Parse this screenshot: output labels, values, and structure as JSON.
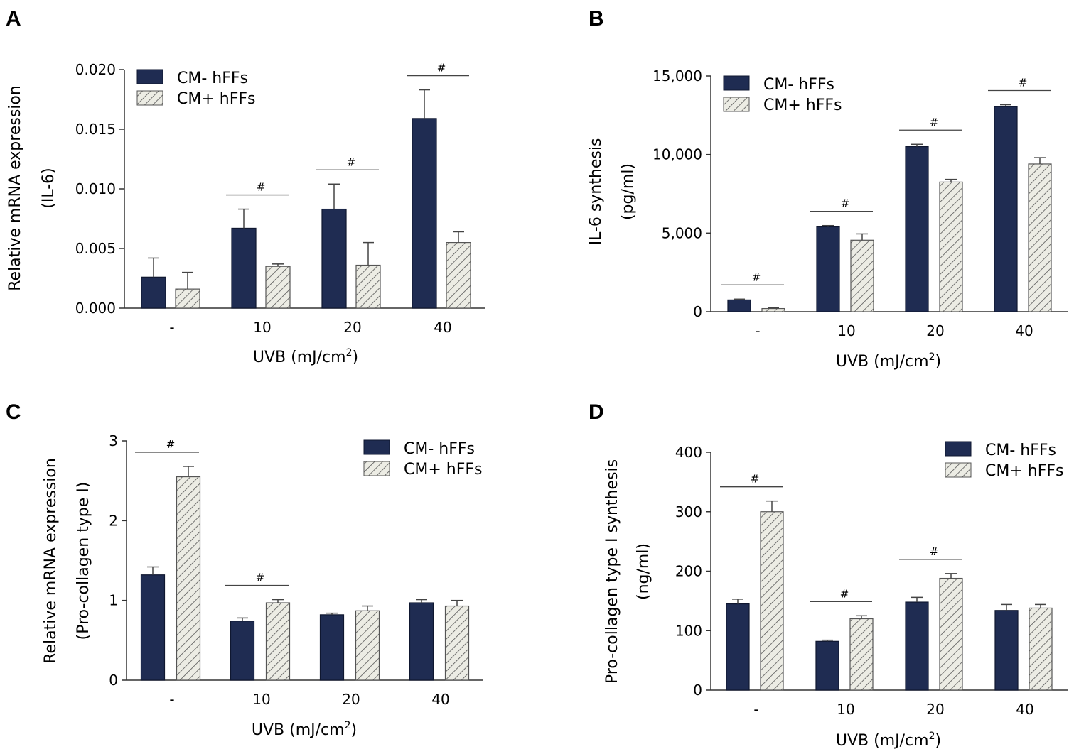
{
  "colors": {
    "dark_bar": "#1f2c52",
    "hatch_bar": "#e8e8df",
    "axis": "#333333"
  },
  "legend": {
    "dark": "CM- hFFs",
    "hatched": "CM+ hFFs"
  },
  "hash_mark": "#",
  "chart_data": [
    {
      "panel": "A",
      "type": "bar",
      "ylabel_line1": "Relative  mRNA expression",
      "ylabel_line2": "(IL-6)",
      "xlabel": "UVB (mJ/cm",
      "xlabel_sup": "2",
      "xlabel_tail": ")",
      "categories": [
        "-",
        "10",
        "20",
        "40"
      ],
      "ylim": [
        0,
        0.02
      ],
      "yticks": [
        0.0,
        0.005,
        0.01,
        0.015,
        0.02
      ],
      "ytick_labels": [
        "0.000",
        "0.005",
        "0.010",
        "0.015",
        "0.020"
      ],
      "legend_position": "top-left",
      "series": [
        {
          "name": "CM- hFFs",
          "values": [
            0.0026,
            0.0067,
            0.0083,
            0.0159
          ],
          "errors": [
            0.0016,
            0.0016,
            0.0021,
            0.0024
          ]
        },
        {
          "name": "CM+ hFFs",
          "values": [
            0.0016,
            0.0035,
            0.0036,
            0.0055
          ],
          "errors": [
            0.0014,
            0.0002,
            0.0019,
            0.0009
          ]
        }
      ],
      "significance": [
        1,
        2,
        3
      ]
    },
    {
      "panel": "B",
      "type": "bar",
      "ylabel_line1": "IL-6 synthesis",
      "ylabel_line2": "(pg/ml)",
      "xlabel": "UVB (mJ/cm",
      "xlabel_sup": "2",
      "xlabel_tail": ")",
      "categories": [
        "-",
        "10",
        "20",
        "40"
      ],
      "ylim": [
        0,
        15000
      ],
      "yticks": [
        0,
        5000,
        10000,
        15000
      ],
      "ytick_labels": [
        "0",
        "5,000",
        "10,000",
        "15,000"
      ],
      "legend_position": "top-left",
      "series": [
        {
          "name": "CM- hFFs",
          "values": [
            750,
            5400,
            10500,
            13050
          ],
          "errors": [
            50,
            80,
            150,
            120
          ]
        },
        {
          "name": "CM+ hFFs",
          "values": [
            200,
            4550,
            8250,
            9400
          ],
          "errors": [
            40,
            400,
            170,
            400
          ]
        }
      ],
      "significance": [
        0,
        1,
        2,
        3
      ]
    },
    {
      "panel": "C",
      "type": "bar",
      "ylabel_line1": "Relative  mRNA expression",
      "ylabel_line2": "(Pro-collagen type I)",
      "xlabel": "UVB (mJ/cm",
      "xlabel_sup": "2",
      "xlabel_tail": ")",
      "categories": [
        "-",
        "10",
        "20",
        "40"
      ],
      "ylim": [
        0,
        3
      ],
      "yticks": [
        0,
        1,
        2,
        3
      ],
      "ytick_labels": [
        "0",
        "1",
        "2",
        "3"
      ],
      "legend_position": "top-right",
      "series": [
        {
          "name": "CM- hFFs",
          "values": [
            1.32,
            0.74,
            0.82,
            0.97
          ],
          "errors": [
            0.1,
            0.04,
            0.02,
            0.04
          ]
        },
        {
          "name": "CM+ hFFs",
          "values": [
            2.55,
            0.97,
            0.87,
            0.93
          ],
          "errors": [
            0.13,
            0.04,
            0.06,
            0.07
          ]
        }
      ],
      "significance": [
        0,
        1
      ]
    },
    {
      "panel": "D",
      "type": "bar",
      "ylabel_line1": "Pro-collagen type I synthesis",
      "ylabel_line2": "(ng/ml)",
      "xlabel": "UVB (mJ/cm",
      "xlabel_sup": "2",
      "xlabel_tail": ")",
      "categories": [
        "-",
        "10",
        "20",
        "40"
      ],
      "ylim": [
        0,
        400
      ],
      "yticks": [
        0,
        100,
        200,
        300,
        400
      ],
      "ytick_labels": [
        "0",
        "100",
        "200",
        "300",
        "400"
      ],
      "legend_position": "top-right",
      "series": [
        {
          "name": "CM- hFFs",
          "values": [
            145,
            82,
            148,
            134
          ],
          "errors": [
            8,
            2,
            8,
            10
          ]
        },
        {
          "name": "CM+ hFFs",
          "values": [
            300,
            120,
            188,
            138
          ],
          "errors": [
            18,
            5,
            8,
            6
          ]
        }
      ],
      "significance": [
        0,
        1,
        2
      ]
    }
  ]
}
